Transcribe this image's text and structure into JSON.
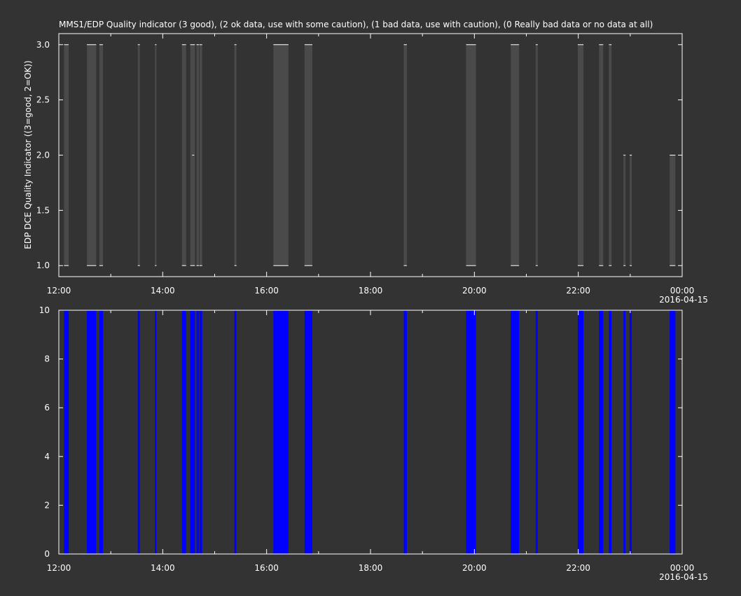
{
  "chart_data": [
    {
      "type": "bar",
      "title": "MMS1/EDP  Quality indicator (3 good), (2 ok data, use with some caution), (1 bad data, use with caution), (0 Really bad data or no data at all)",
      "ylabel": "EDP DCE Quality Indicator ((3=good, 2=OK))",
      "xlabel": "",
      "xlim_hours": [
        12,
        24
      ],
      "ylim": [
        0.9,
        3.1
      ],
      "y_ticks": [
        "1.0",
        "1.5",
        "2.0",
        "2.5",
        "3.0"
      ],
      "x_ticks": [
        "12:00",
        "14:00",
        "16:00",
        "18:00",
        "20:00",
        "22:00",
        "00:00"
      ],
      "date_label": "2016-04-15",
      "bar_color": "#4a4a4a",
      "grid": false,
      "intervals": [
        {
          "start": 12.1,
          "end": 12.19,
          "low": 1,
          "high": 3
        },
        {
          "start": 12.54,
          "end": 12.72,
          "low": 1,
          "high": 3
        },
        {
          "start": 12.78,
          "end": 12.85,
          "low": 1,
          "high": 3
        },
        {
          "start": 13.52,
          "end": 13.56,
          "low": 1,
          "high": 3
        },
        {
          "start": 13.85,
          "end": 13.88,
          "low": 1,
          "high": 3
        },
        {
          "start": 14.37,
          "end": 14.45,
          "low": 1,
          "high": 3
        },
        {
          "start": 14.53,
          "end": 14.62,
          "low": 1,
          "high": 3
        },
        {
          "start": 14.65,
          "end": 14.7,
          "low": 1,
          "high": 3
        },
        {
          "start": 14.71,
          "end": 14.76,
          "low": 1,
          "high": 3
        },
        {
          "start": 15.38,
          "end": 15.42,
          "low": 1,
          "high": 3
        },
        {
          "start": 16.13,
          "end": 16.42,
          "low": 1,
          "high": 3
        },
        {
          "start": 16.73,
          "end": 16.88,
          "low": 1,
          "high": 3
        },
        {
          "start": 18.64,
          "end": 18.7,
          "low": 1,
          "high": 3
        },
        {
          "start": 19.84,
          "end": 20.03,
          "low": 1,
          "high": 3
        },
        {
          "start": 20.7,
          "end": 20.86,
          "low": 1,
          "high": 3
        },
        {
          "start": 21.18,
          "end": 21.22,
          "low": 1,
          "high": 3
        },
        {
          "start": 21.99,
          "end": 22.1,
          "low": 1,
          "high": 3
        },
        {
          "start": 22.4,
          "end": 22.48,
          "low": 1,
          "high": 3
        },
        {
          "start": 22.59,
          "end": 22.64,
          "low": 1,
          "high": 3
        },
        {
          "start": 22.87,
          "end": 22.91,
          "low": 1,
          "high": 2
        },
        {
          "start": 22.99,
          "end": 23.03,
          "low": 1,
          "high": 2
        },
        {
          "start": 23.76,
          "end": 23.87,
          "low": 1,
          "high": 2
        }
      ],
      "points": [
        {
          "x": 14.58,
          "y": 2
        }
      ]
    },
    {
      "type": "bar",
      "title": "",
      "ylabel": "",
      "xlabel": "",
      "xlim_hours": [
        12,
        24
      ],
      "ylim": [
        0,
        10
      ],
      "y_ticks": [
        "0",
        "2",
        "4",
        "6",
        "8",
        "10"
      ],
      "x_ticks": [
        "12:00",
        "14:00",
        "16:00",
        "18:00",
        "20:00",
        "22:00",
        "00:00"
      ],
      "date_label": "2016-04-15",
      "bar_color": "#0000ff",
      "grid": false,
      "intervals": [
        {
          "start": 12.1,
          "end": 12.19,
          "low": 0,
          "high": 10
        },
        {
          "start": 12.54,
          "end": 12.72,
          "low": 0,
          "high": 10
        },
        {
          "start": 12.78,
          "end": 12.85,
          "low": 0,
          "high": 10
        },
        {
          "start": 13.52,
          "end": 13.56,
          "low": 0,
          "high": 10
        },
        {
          "start": 13.85,
          "end": 13.88,
          "low": 0,
          "high": 10
        },
        {
          "start": 14.37,
          "end": 14.45,
          "low": 0,
          "high": 10
        },
        {
          "start": 14.53,
          "end": 14.62,
          "low": 0,
          "high": 10
        },
        {
          "start": 14.65,
          "end": 14.7,
          "low": 0,
          "high": 10
        },
        {
          "start": 14.71,
          "end": 14.76,
          "low": 0,
          "high": 10
        },
        {
          "start": 15.38,
          "end": 15.42,
          "low": 0,
          "high": 10
        },
        {
          "start": 16.13,
          "end": 16.42,
          "low": 0,
          "high": 10
        },
        {
          "start": 16.73,
          "end": 16.88,
          "low": 0,
          "high": 10
        },
        {
          "start": 18.64,
          "end": 18.7,
          "low": 0,
          "high": 10
        },
        {
          "start": 19.84,
          "end": 20.03,
          "low": 0,
          "high": 10
        },
        {
          "start": 20.7,
          "end": 20.86,
          "low": 0,
          "high": 10
        },
        {
          "start": 21.18,
          "end": 21.22,
          "low": 0,
          "high": 10
        },
        {
          "start": 21.99,
          "end": 22.1,
          "low": 0,
          "high": 10
        },
        {
          "start": 22.4,
          "end": 22.48,
          "low": 0,
          "high": 10
        },
        {
          "start": 22.59,
          "end": 22.64,
          "low": 0,
          "high": 10
        },
        {
          "start": 22.87,
          "end": 22.91,
          "low": 0,
          "high": 10
        },
        {
          "start": 22.99,
          "end": 23.03,
          "low": 0,
          "high": 10
        },
        {
          "start": 23.76,
          "end": 23.87,
          "low": 0,
          "high": 10
        }
      ],
      "points": []
    }
  ]
}
